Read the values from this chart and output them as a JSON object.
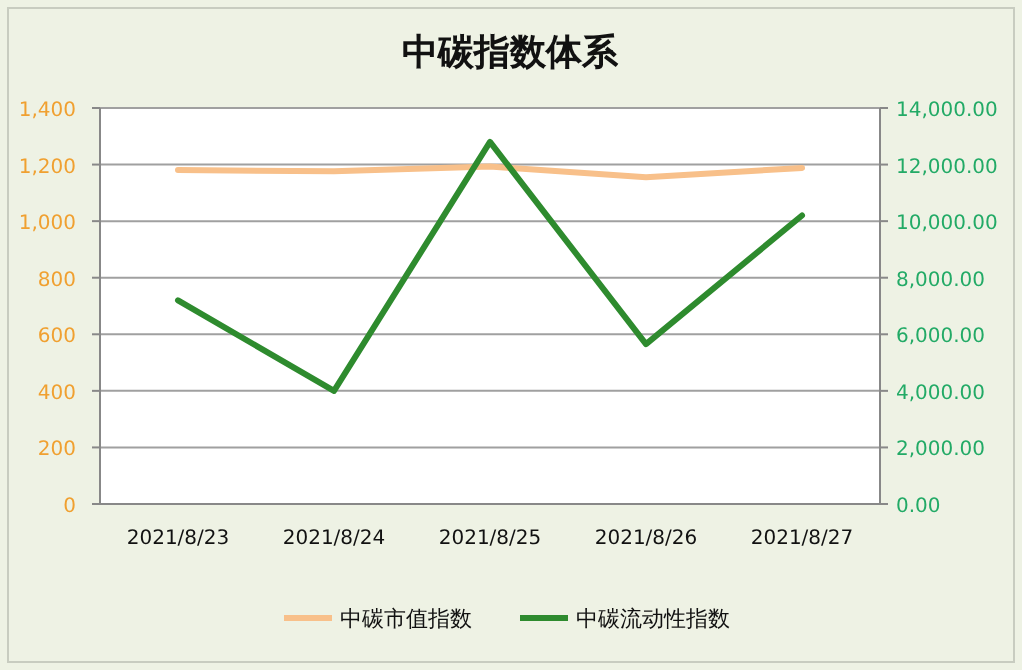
{
  "chart_data": {
    "type": "line",
    "title": "中碳指数体系",
    "categories": [
      "2021/8/23",
      "2021/8/24",
      "2021/8/25",
      "2021/8/26",
      "2021/8/27"
    ],
    "series": [
      {
        "name": "中碳市值指数",
        "color": "#f8c08a",
        "values": [
          1181,
          1176,
          1193,
          1155,
          1188
        ]
      },
      {
        "name": "中碳流动性指数",
        "color": "#2e8b2e",
        "axis": "y2",
        "values": [
          7200,
          4000,
          12800,
          5650,
          10200
        ]
      }
    ],
    "ylim": [
      0,
      1400
    ],
    "yticks": [
      {
        "value": 0,
        "label": "0"
      },
      {
        "value": 200,
        "label": "200"
      },
      {
        "value": 400,
        "label": "400"
      },
      {
        "value": 600,
        "label": "600"
      },
      {
        "value": 800,
        "label": "800"
      },
      {
        "value": 1000,
        "label": "1,000"
      },
      {
        "value": 1200,
        "label": "1,200"
      },
      {
        "value": 1400,
        "label": "1,400"
      }
    ],
    "y2lim": [
      0,
      14000
    ],
    "y2ticks": [
      {
        "value": 0,
        "label": "0.00"
      },
      {
        "value": 2000,
        "label": "2,000.00"
      },
      {
        "value": 4000,
        "label": "4,000.00"
      },
      {
        "value": 6000,
        "label": "6,000.00"
      },
      {
        "value": 8000,
        "label": "8,000.00"
      },
      {
        "value": 10000,
        "label": "10,000.00"
      },
      {
        "value": 12000,
        "label": "12,000.00"
      },
      {
        "value": 14000,
        "label": "14,000.00"
      }
    ],
    "grid": "y",
    "legend": "bottom",
    "marker": "none",
    "line_style": "solid"
  }
}
